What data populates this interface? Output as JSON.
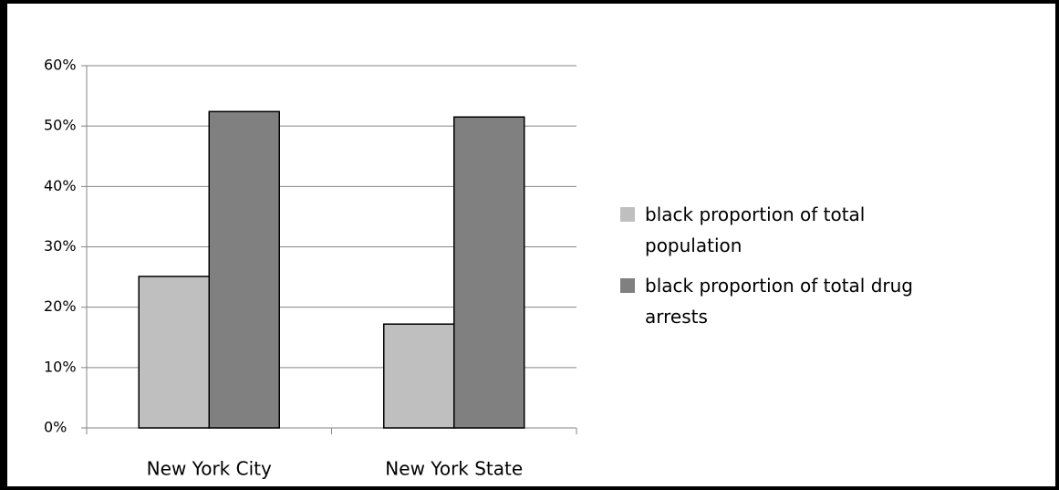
{
  "chart_data": {
    "type": "bar",
    "categories": [
      "New York City",
      "New York State"
    ],
    "series": [
      {
        "name": "black proportion of total population",
        "color": "#bfbfbf",
        "values": [
          25.1,
          17.2
        ]
      },
      {
        "name": "black proportion of total drug arrests",
        "color": "#808080",
        "values": [
          52.4,
          51.5
        ]
      }
    ],
    "ylim": [
      0,
      60
    ],
    "yticks": [
      {
        "value": 0,
        "label": "0%"
      },
      {
        "value": 10,
        "label": "10%"
      },
      {
        "value": 20,
        "label": "20%"
      },
      {
        "value": 30,
        "label": "30%"
      },
      {
        "value": 40,
        "label": "40%"
      },
      {
        "value": 50,
        "label": "50%"
      },
      {
        "value": 60,
        "label": "60%"
      }
    ],
    "grid": true,
    "legend": "right"
  }
}
